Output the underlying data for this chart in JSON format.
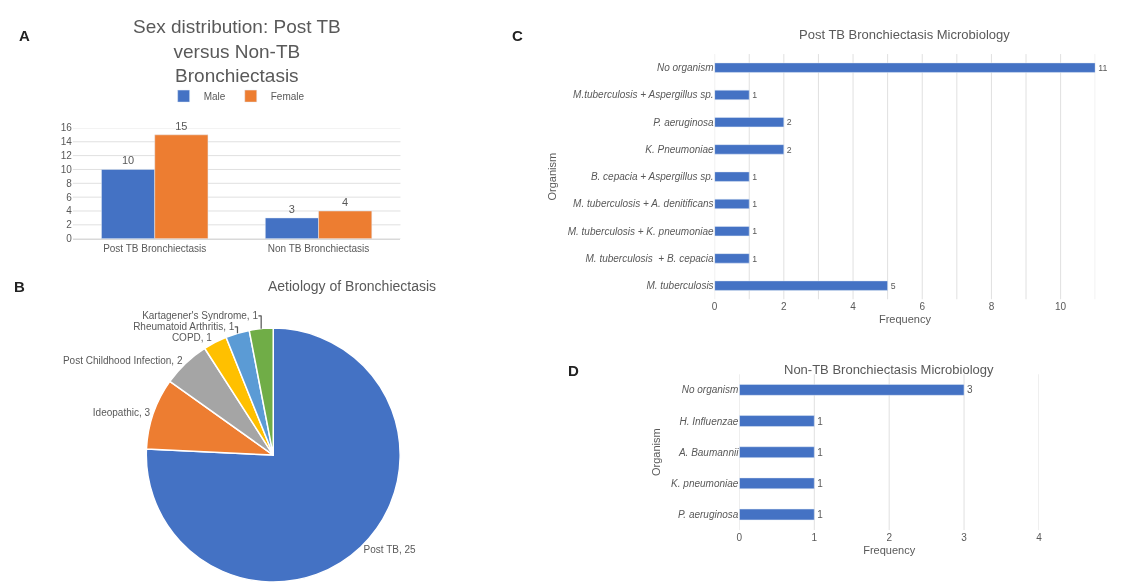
{
  "chart_data": [
    {
      "type": "bar",
      "title": "Sex distribution: Post TB versus Non-TB Bronchiectasis",
      "annotations": [
        "A"
      ],
      "categories": [
        "Post TB Bronchiectasis",
        "Non TB Bronchiectasis"
      ],
      "series": [
        {
          "name": "Male",
          "color": "#4472c4",
          "values": [
            10,
            3
          ]
        },
        {
          "name": "Female",
          "color": "#ed7d31",
          "values": [
            15,
            4
          ]
        }
      ],
      "ylim": [
        0,
        16
      ],
      "yticks": [
        0,
        2,
        4,
        6,
        8,
        10,
        12,
        14,
        16
      ],
      "grid": "y",
      "legend": "top",
      "data_labels": true
    },
    {
      "type": "pie",
      "title": "Aetiology of Bronchiectasis",
      "annotations": [
        "B"
      ],
      "categories": [
        "Post TB, 25",
        "Ideopathic, 3",
        "Post Childhood Infection, 2",
        "COPD, 1",
        "Rheumatoid Arthritis, 1",
        "Kartagener's Syndrome, 1"
      ],
      "values": [
        25,
        3,
        2,
        1,
        1,
        1
      ],
      "colors": [
        "#4472c4",
        "#ed7d31",
        "#a5a5a5",
        "#ffc000",
        "#5b9bd5",
        "#70ad47"
      ]
    },
    {
      "type": "bar",
      "orientation": "horizontal",
      "title": "Post TB Bronchiectasis Microbiology",
      "annotations": [
        "C"
      ],
      "xlabel": "Frequency",
      "ylabel": "Organism",
      "categories": [
        "No organism",
        "M.tuberculosis + Aspergillus sp.",
        "P. aeruginosa",
        "K. Pneumoniae",
        "B. cepacia + Aspergillus sp.",
        "M. tuberculosis + A. denitificans",
        "M. tuberculosis + K. pneumoniae",
        "M. tuberculosis  + B. cepacia",
        "M. tuberculosis"
      ],
      "values": [
        11,
        1,
        2,
        2,
        1,
        1,
        1,
        1,
        5
      ],
      "color": "#4472c4",
      "xlim": [
        0,
        11
      ],
      "xticks": [
        0,
        {
          "value": 1,
          "label": null
        },
        2,
        {
          "value": 3,
          "label": null
        },
        4,
        {
          "value": 5,
          "label": null
        },
        6,
        {
          "value": 7,
          "label": null
        },
        8,
        {
          "value": 9,
          "label": null
        },
        10,
        {
          "value": 11,
          "label": null
        }
      ],
      "grid": "x",
      "data_labels": true
    },
    {
      "type": "bar",
      "orientation": "horizontal",
      "title": "Non-TB Bronchiectasis Microbiology",
      "annotations": [
        "D"
      ],
      "xlabel": "Frequency",
      "ylabel": "Organism",
      "categories": [
        "No organism",
        "H. Influenzae",
        "A. Baumannii",
        "K. pneumoniae",
        "P. aeruginosa"
      ],
      "values": [
        3,
        1,
        1,
        1,
        1
      ],
      "color": "#4472c4",
      "xlim": [
        0,
        4
      ],
      "xticks": [
        0,
        1,
        2,
        3,
        4
      ],
      "grid": "x",
      "data_labels": true
    }
  ]
}
